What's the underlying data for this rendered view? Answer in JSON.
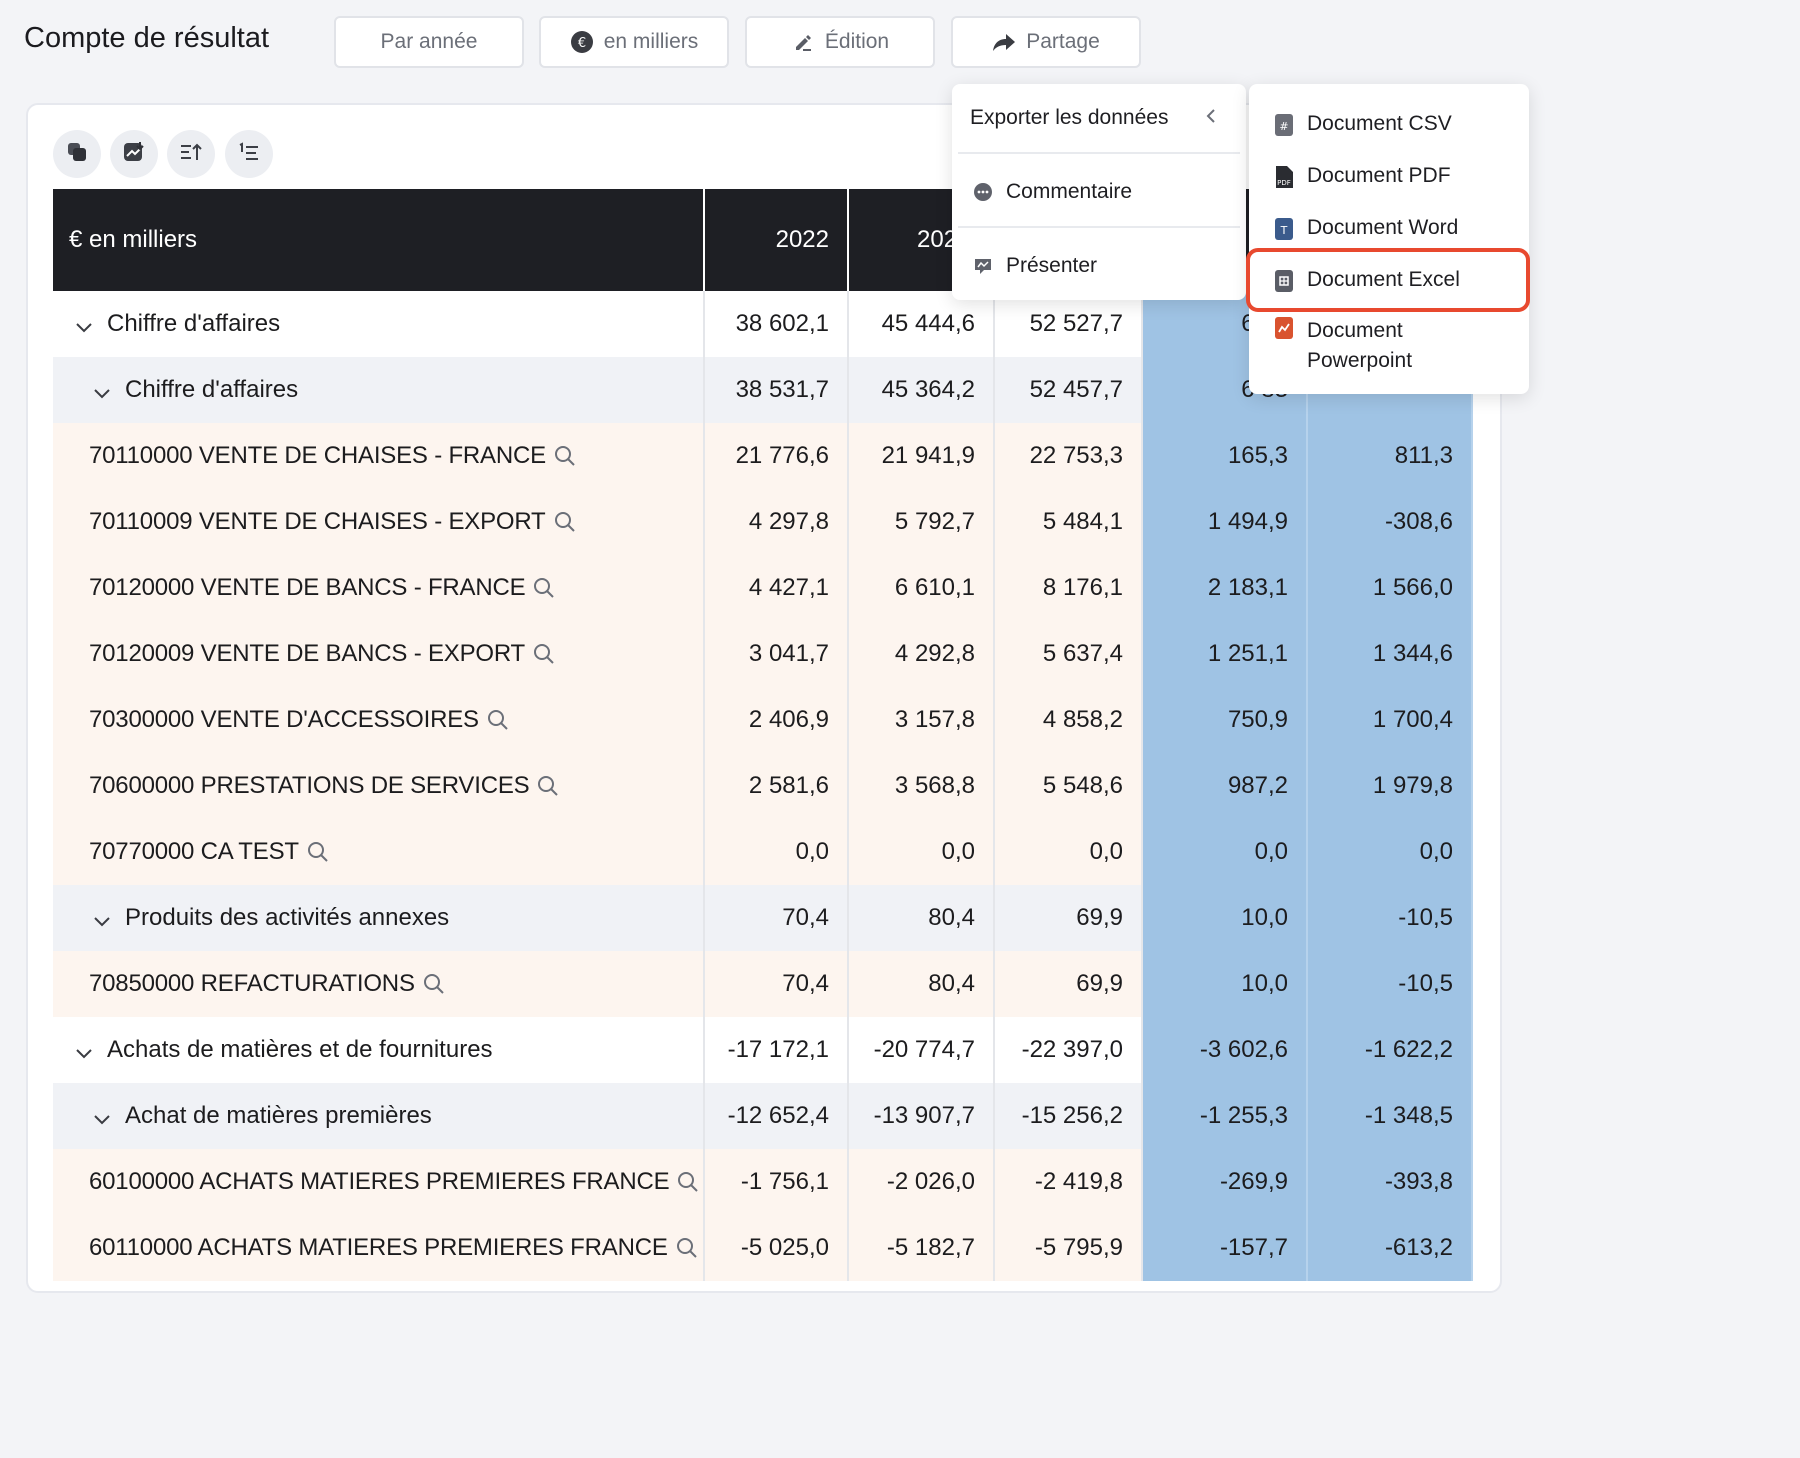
{
  "header": {
    "title": "Compte de résultat",
    "buttons": {
      "period": "Par année",
      "unit": "en milliers",
      "edit": "Édition",
      "share": "Partage"
    }
  },
  "table": {
    "header_label": "€ en milliers",
    "columns": [
      "2022",
      "202",
      "",
      "",
      ""
    ],
    "rows": [
      {
        "label": "Chiffre d'affaires",
        "v": [
          "38 602,1",
          "45 444,6",
          "52 527,7",
          "6 84",
          ""
        ]
      },
      {
        "label": "Chiffre d'affaires",
        "v": [
          "38 531,7",
          "45 364,2",
          "52 457,7",
          "6 83",
          ""
        ]
      },
      {
        "label": "70110000 VENTE DE CHAISES - FRANCE",
        "v": [
          "21 776,6",
          "21 941,9",
          "22 753,3",
          "165,3",
          "811,3"
        ]
      },
      {
        "label": "70110009 VENTE DE CHAISES - EXPORT",
        "v": [
          "4 297,8",
          "5 792,7",
          "5 484,1",
          "1 494,9",
          "-308,6"
        ]
      },
      {
        "label": "70120000 VENTE DE BANCS - FRANCE",
        "v": [
          "4 427,1",
          "6 610,1",
          "8 176,1",
          "2 183,1",
          "1 566,0"
        ]
      },
      {
        "label": "70120009 VENTE DE BANCS - EXPORT",
        "v": [
          "3 041,7",
          "4 292,8",
          "5 637,4",
          "1 251,1",
          "1 344,6"
        ]
      },
      {
        "label": "70300000 VENTE D'ACCESSOIRES",
        "v": [
          "2 406,9",
          "3 157,8",
          "4 858,2",
          "750,9",
          "1 700,4"
        ]
      },
      {
        "label": "70600000 PRESTATIONS DE SERVICES",
        "v": [
          "2 581,6",
          "3 568,8",
          "5 548,6",
          "987,2",
          "1 979,8"
        ]
      },
      {
        "label": "70770000 CA TEST",
        "v": [
          "0,0",
          "0,0",
          "0,0",
          "0,0",
          "0,0"
        ]
      },
      {
        "label": "Produits des activités annexes",
        "v": [
          "70,4",
          "80,4",
          "69,9",
          "10,0",
          "-10,5"
        ]
      },
      {
        "label": "70850000 REFACTURATIONS",
        "v": [
          "70,4",
          "80,4",
          "69,9",
          "10,0",
          "-10,5"
        ]
      },
      {
        "label": "Achats de matières et de fournitures",
        "v": [
          "-17 172,1",
          "-20 774,7",
          "-22 397,0",
          "-3 602,6",
          "-1 622,2"
        ]
      },
      {
        "label": "Achat de matières premières",
        "v": [
          "-12 652,4",
          "-13 907,7",
          "-15 256,2",
          "-1 255,3",
          "-1 348,5"
        ]
      },
      {
        "label": "60100000 ACHATS MATIERES PREMIERES FRANCE",
        "v": [
          "-1 756,1",
          "-2 026,0",
          "-2 419,8",
          "-269,9",
          "-393,8"
        ]
      },
      {
        "label": "60110000 ACHATS MATIERES PREMIERES FRANCE",
        "v": [
          "-5 025,0",
          "-5 182,7",
          "-5 795,9",
          "-157,7",
          "-613,2"
        ]
      }
    ]
  },
  "menu": {
    "export": "Exporter les données",
    "comment": "Commentaire",
    "present": "Présenter"
  },
  "submenu": {
    "csv": "Document CSV",
    "pdf": "Document PDF",
    "word": "Document Word",
    "excel": "Document Excel",
    "ppt_line1": "Document",
    "ppt_line2": "Powerpoint"
  },
  "colors": {
    "header_bg": "#1e1f24",
    "highlight": "#e8492f",
    "blue_col": "#9fc3e4"
  }
}
